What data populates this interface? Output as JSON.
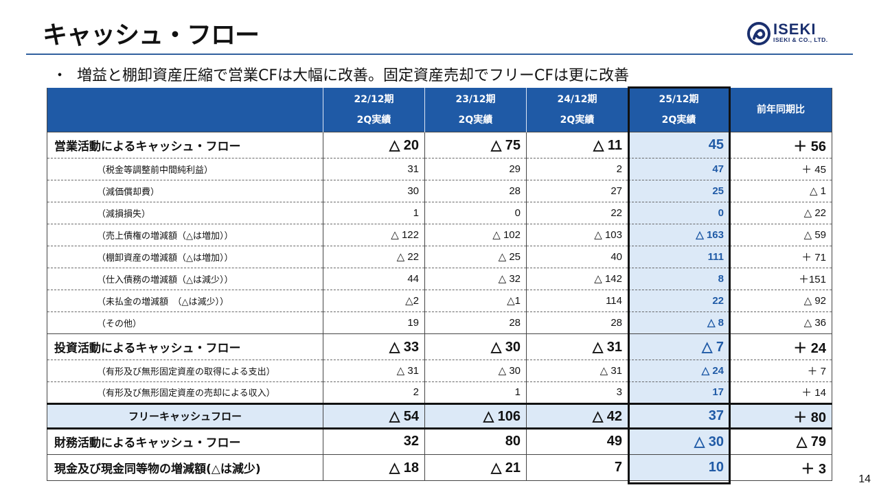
{
  "title": "キャッシュ・フロー",
  "logo": {
    "name": "ISEKI",
    "sub": "ISEKI & CO., LTD."
  },
  "bullet": {
    "mark": "・",
    "text": "増益と棚卸資産圧縮で営業CFは大幅に改善。固定資産売却でフリーCFは更に改善"
  },
  "table": {
    "headers": [
      {
        "line1": "22/12期",
        "line2": "2Q実績"
      },
      {
        "line1": "23/12期",
        "line2": "2Q実績"
      },
      {
        "line1": "24/12期",
        "line2": "2Q実績"
      },
      {
        "line1": "25/12期",
        "line2": "2Q実績"
      },
      {
        "line1": "前年同期比",
        "line2": ""
      }
    ],
    "operating": {
      "label": "営業活動によるキャッシュ・フロー",
      "values": [
        "△ 20",
        "△ 75",
        "△ 11",
        "45",
        "＋ 56"
      ],
      "items": [
        {
          "label": "（税金等調整前中間純利益）",
          "values": [
            "31",
            "29",
            "2",
            "47",
            "＋ 45"
          ]
        },
        {
          "label": "（減価償却費）",
          "values": [
            "30",
            "28",
            "27",
            "25",
            "△ 1"
          ]
        },
        {
          "label": "（減損損失）",
          "values": [
            "1",
            "0",
            "22",
            "0",
            "△ 22"
          ]
        },
        {
          "label": "（売上債権の増減額（△は増加））",
          "values": [
            "△ 122",
            "△ 102",
            "△ 103",
            "△ 163",
            "△ 59"
          ]
        },
        {
          "label": "（棚卸資産の増減額（△は増加））",
          "values": [
            "△ 22",
            "△ 25",
            "40",
            "111",
            "＋ 71"
          ]
        },
        {
          "label": "（仕入債務の増減額（△は減少））",
          "values": [
            "44",
            "△ 32",
            "△ 142",
            "8",
            "＋151"
          ]
        },
        {
          "label": "（未払金の増減額　（△は減少））",
          "values": [
            "△2",
            "△1",
            "114",
            "22",
            "△ 92"
          ]
        },
        {
          "label": "（その他）",
          "values": [
            "19",
            "28",
            "28",
            "△ 8",
            "△ 36"
          ]
        }
      ]
    },
    "investing": {
      "label": "投資活動によるキャッシュ・フロー",
      "values": [
        "△ 33",
        "△ 30",
        "△ 31",
        "△ 7",
        "＋ 24"
      ],
      "items": [
        {
          "label": "（有形及び無形固定資産の取得による支出）",
          "values": [
            "△ 31",
            "△ 30",
            "△ 31",
            "△ 24",
            "＋ 7"
          ]
        },
        {
          "label": "（有形及び無形固定資産の売却による収入）",
          "values": [
            "2",
            "1",
            "3",
            "17",
            "＋ 14"
          ]
        }
      ]
    },
    "free_cf": {
      "label": "フリーキャッシュフロー",
      "values": [
        "△ 54",
        "△ 106",
        "△ 42",
        "37",
        "＋ 80"
      ]
    },
    "financing": {
      "label": "財務活動によるキャッシュ・フロー",
      "values": [
        "32",
        "80",
        "49",
        "△ 30",
        "△ 79"
      ]
    },
    "net_change": {
      "label": "現金及び現金同等物の増減額(△は減少)",
      "values": [
        "△ 18",
        "△ 21",
        "7",
        "10",
        "＋ 3"
      ]
    }
  },
  "page_number": "14"
}
